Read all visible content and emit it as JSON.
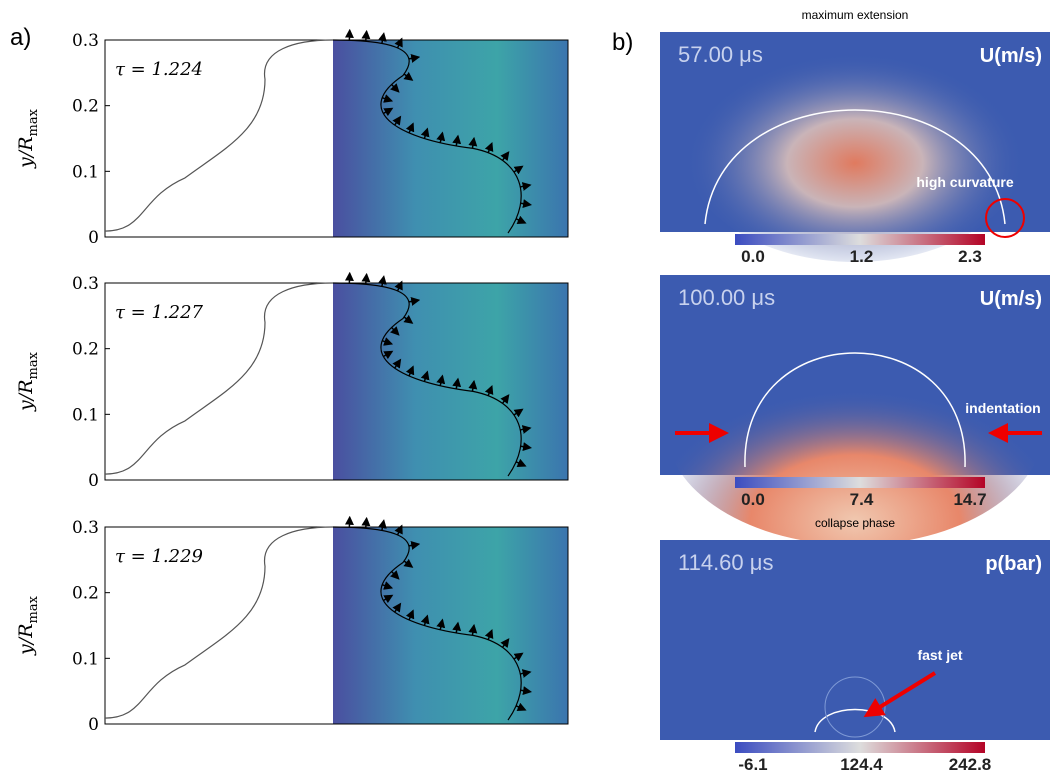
{
  "panel_a": {
    "label": "a)",
    "y_axis_label": "y/R",
    "y_axis_label_sub": "max",
    "y_ticks": [
      "0",
      "0.1",
      "0.2",
      "0.3"
    ],
    "plots": [
      {
        "tau": "τ = 1.224"
      },
      {
        "tau": "τ = 1.227"
      },
      {
        "tau": "τ = 1.229"
      }
    ]
  },
  "panel_b": {
    "label": "b)",
    "plots": [
      {
        "title": "maximum extension",
        "time": "57.00 μs",
        "quantity": "U(m/s)",
        "annotation": "high curvature",
        "colorbar_ticks": [
          "0.0",
          "1.2",
          "2.3"
        ]
      },
      {
        "time": "100.00 μs",
        "quantity": "U(m/s)",
        "annotation": "indentation",
        "colorbar_ticks": [
          "0.0",
          "7.4",
          "14.7"
        ]
      },
      {
        "title": "collapse phase",
        "time": "114.60 μs",
        "quantity": "p(bar)",
        "annotation": "fast jet",
        "colorbar_ticks": [
          "-6.1",
          "124.4",
          "242.8"
        ]
      }
    ]
  }
}
